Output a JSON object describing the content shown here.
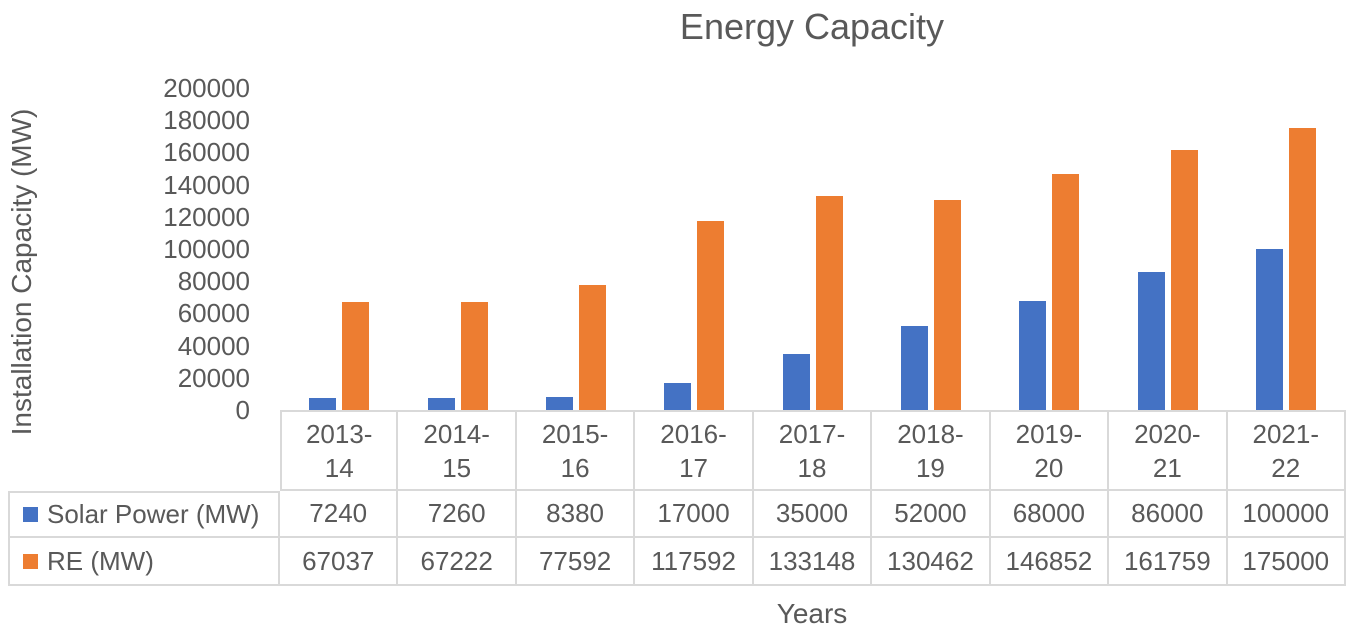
{
  "chart_data": {
    "type": "bar",
    "title": "Energy Capacity",
    "xlabel": "Years",
    "ylabel": "Installation Capacity (MW)",
    "categories": [
      "2013-14",
      "2014-15",
      "2015-16",
      "2016-17",
      "2017-18",
      "2018-19",
      "2019-20",
      "2020-21",
      "2021-22"
    ],
    "series": [
      {
        "name": "Solar Power (MW)",
        "color": "#4472C4",
        "values": [
          7240,
          7260,
          8380,
          17000,
          35000,
          52000,
          68000,
          86000,
          100000
        ]
      },
      {
        "name": "RE (MW)",
        "color": "#ED7D31",
        "values": [
          67037,
          67222,
          77592,
          117592,
          133148,
          130462,
          146852,
          161759,
          175000
        ]
      }
    ],
    "ylim": [
      0,
      200000
    ],
    "yticks": [
      0,
      20000,
      40000,
      60000,
      80000,
      100000,
      120000,
      140000,
      160000,
      180000,
      200000
    ],
    "grid": false,
    "legend_position": "data-table-left",
    "data_table_shown": true
  },
  "colors": {
    "text": "#595959",
    "border": "#D9D9D9",
    "background": "#FFFFFF",
    "solar_blue": "#4472C4",
    "re_orange": "#ED7D31"
  }
}
